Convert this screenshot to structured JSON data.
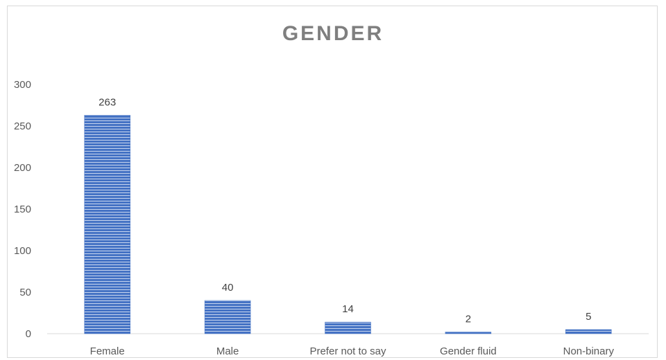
{
  "chart_data": {
    "type": "bar",
    "title": "GENDER",
    "categories": [
      "Female",
      "Male",
      "Prefer not to say",
      "Gender fluid",
      "Non-binary"
    ],
    "values": [
      263,
      40,
      14,
      2,
      5
    ],
    "ylim": [
      0,
      300
    ],
    "yticks": [
      0,
      50,
      100,
      150,
      200,
      250,
      300
    ],
    "grid": false,
    "legend": "none",
    "bar_color": "#4472c4"
  }
}
